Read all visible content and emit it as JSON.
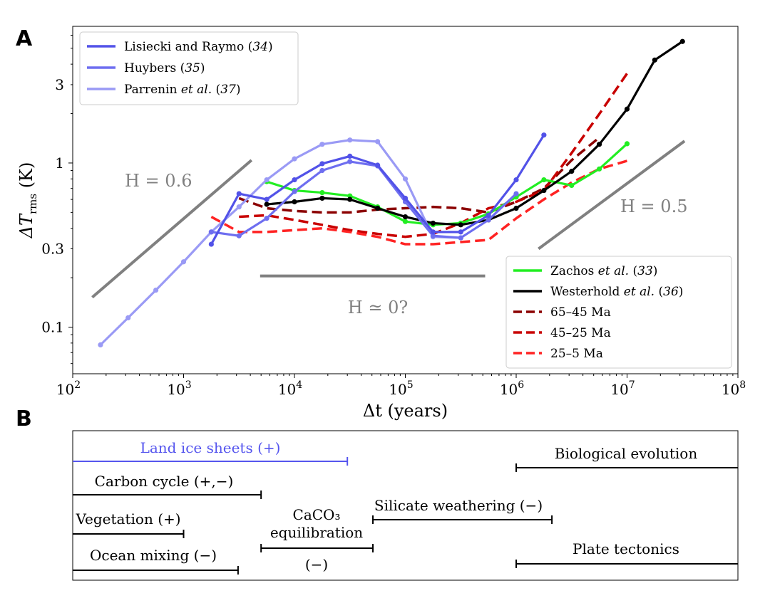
{
  "chart_data": [
    {
      "panel": "A",
      "type": "line",
      "xscale": "log",
      "yscale": "log",
      "xlabel": "Δt (years)",
      "ylabel_main": "ΔT",
      "ylabel_sub": "rms",
      "ylabel_unit": "(K)",
      "xlim": [
        100,
        100000000
      ],
      "ylim": [
        0.052,
        6.8
      ],
      "xticks": [
        {
          "base": "10",
          "exp": "2",
          "value": 100
        },
        {
          "base": "10",
          "exp": "3",
          "value": 1000
        },
        {
          "base": "10",
          "exp": "4",
          "value": 10000
        },
        {
          "base": "10",
          "exp": "5",
          "value": 100000
        },
        {
          "base": "10",
          "exp": "6",
          "value": 1000000
        },
        {
          "base": "10",
          "exp": "7",
          "value": 10000000
        },
        {
          "base": "10",
          "exp": "8",
          "value": 100000000
        }
      ],
      "yticks": [
        {
          "label": "0.1",
          "value": 0.1
        },
        {
          "label": "0.3",
          "value": 0.3
        },
        {
          "label": "1",
          "value": 1
        },
        {
          "label": "3",
          "value": 3
        }
      ],
      "grid": false,
      "legends": [
        {
          "placement": "top-left",
          "entries": [
            0,
            1,
            2
          ]
        },
        {
          "placement": "bottom-right",
          "entries": [
            3,
            4,
            5,
            6,
            7
          ]
        }
      ],
      "series": [
        {
          "name": "Lisiecki and Raymo",
          "etal": "",
          "ref": "34",
          "color": "#5252e8",
          "style": "solid-markers",
          "x": [
            1778,
            3162,
            5623,
            10000,
            17783,
            31623,
            56234,
            100000,
            177828,
            316228,
            562341,
            1000000,
            1778279
          ],
          "y": [
            0.32,
            0.65,
            0.6,
            0.79,
            0.99,
            1.1,
            0.97,
            0.61,
            0.38,
            0.38,
            0.48,
            0.79,
            1.48
          ]
        },
        {
          "name": "Huybers",
          "etal": "",
          "ref": "35",
          "color": "#6e6ef0",
          "style": "solid-markers",
          "x": [
            1778,
            3162,
            5623,
            10000,
            17783,
            31623,
            56234,
            100000,
            177828,
            316228,
            562341,
            1000000
          ],
          "y": [
            0.38,
            0.36,
            0.46,
            0.67,
            0.9,
            1.02,
            0.96,
            0.58,
            0.36,
            0.35,
            0.45,
            0.65
          ]
        },
        {
          "name": "Parrenin",
          "etal": "et al.",
          "ref": "37",
          "color": "#9a9af5",
          "style": "solid-markers",
          "x": [
            178,
            316,
            562,
            1000,
            1778,
            3162,
            5623,
            10000,
            17783,
            31623,
            56234,
            100000,
            177828,
            316228
          ],
          "y": [
            0.078,
            0.114,
            0.168,
            0.25,
            0.38,
            0.54,
            0.79,
            1.06,
            1.3,
            1.38,
            1.35,
            0.8,
            0.355,
            0.35
          ]
        },
        {
          "name": "Zachos",
          "etal": "et al.",
          "ref": "33",
          "color": "#22ee22",
          "style": "solid-markers",
          "x": [
            5623,
            10000,
            17783,
            31623,
            56234,
            100000,
            177828,
            316228,
            562341,
            1000000,
            1778279,
            3162278,
            5623413,
            10000000
          ],
          "y": [
            0.77,
            0.68,
            0.66,
            0.63,
            0.54,
            0.44,
            0.42,
            0.43,
            0.49,
            0.62,
            0.79,
            0.73,
            0.92,
            1.31
          ]
        },
        {
          "name": "Westerhold",
          "etal": "et al.",
          "ref": "36",
          "color": "#000000",
          "style": "solid-markers",
          "x": [
            5623,
            10000,
            17783,
            31623,
            56234,
            100000,
            177828,
            316228,
            562341,
            1000000,
            1778279,
            3162278,
            5623413,
            10000000,
            17782794,
            31622777
          ],
          "y": [
            0.56,
            0.58,
            0.61,
            0.6,
            0.53,
            0.47,
            0.43,
            0.42,
            0.45,
            0.53,
            0.68,
            0.89,
            1.3,
            2.13,
            4.24,
            5.5
          ]
        },
        {
          "name": "65–45 Ma",
          "etal": "",
          "ref": "",
          "color": "#8b0000",
          "style": "dashed",
          "x": [
            3162,
            5623,
            10000,
            17783,
            31623,
            56234,
            100000,
            177828,
            316228,
            562341,
            1000000,
            1778279,
            3162278,
            5623413
          ],
          "y": [
            0.61,
            0.53,
            0.51,
            0.5,
            0.5,
            0.52,
            0.53,
            0.54,
            0.53,
            0.5,
            0.58,
            0.7,
            1.04,
            1.43
          ]
        },
        {
          "name": "45–25 Ma",
          "etal": "",
          "ref": "",
          "color": "#c80000",
          "style": "dashed",
          "x": [
            3162,
            5623,
            10000,
            17783,
            31623,
            56234,
            100000,
            177828,
            316228,
            562341,
            1000000,
            1778279,
            3162278,
            5623413,
            10000000
          ],
          "y": [
            0.47,
            0.48,
            0.45,
            0.42,
            0.39,
            0.37,
            0.355,
            0.37,
            0.43,
            0.53,
            0.58,
            0.68,
            1.15,
            1.99,
            3.51
          ]
        },
        {
          "name": "25–5 Ma",
          "etal": "",
          "ref": "",
          "color": "#ff2222",
          "style": "dashed",
          "x": [
            1778,
            3162,
            5623,
            10000,
            17783,
            31623,
            56234,
            100000,
            177828,
            316228,
            562341,
            1000000,
            1778279,
            3162278,
            5623413,
            10000000
          ],
          "y": [
            0.47,
            0.38,
            0.38,
            0.39,
            0.4,
            0.38,
            0.355,
            0.32,
            0.32,
            0.33,
            0.34,
            0.46,
            0.6,
            0.76,
            0.92,
            1.03
          ]
        }
      ],
      "reference_lines": [
        {
          "label": "H = 0.6",
          "x": [
            150,
            4100
          ],
          "y": [
            0.152,
            1.04
          ]
        },
        {
          "label": "H = 0.5",
          "x": [
            1590000,
            33000000
          ],
          "y": [
            0.3,
            1.36
          ]
        },
        {
          "label": "H ≃ 0?",
          "x": [
            4900,
            525000
          ],
          "y": [
            0.205,
            0.205
          ]
        }
      ]
    },
    {
      "panel": "B",
      "type": "timeline",
      "xscale": "log",
      "xlim": [
        100,
        100000000
      ],
      "bars": [
        {
          "label": "Land ice sheets (+)",
          "start": 100,
          "end": 30000,
          "color": "#5555ee"
        },
        {
          "label": "Carbon cycle (+,−)",
          "start": 100,
          "end": 5000,
          "color": "#000000"
        },
        {
          "label": "Vegetation (+)",
          "start": 100,
          "end": 1000,
          "color": "#000000"
        },
        {
          "label": "Ocean mixing (−)",
          "start": 100,
          "end": 3100,
          "color": "#000000"
        },
        {
          "label_lines": [
            "CaCO₃",
            "equilibration",
            "(−)"
          ],
          "start": 5000,
          "end": 51000,
          "color": "#000000"
        },
        {
          "label": "Silicate weathering (−)",
          "start": 51000,
          "end": 2100000,
          "color": "#000000"
        },
        {
          "label": "Biological evolution",
          "start": 1000000,
          "end": 100000000,
          "color": "#000000"
        },
        {
          "label": "Plate tectonics",
          "start": 1000000,
          "end": 100000000,
          "color": "#000000"
        }
      ]
    }
  ],
  "panels": {
    "a_label": "A",
    "b_label": "B"
  }
}
